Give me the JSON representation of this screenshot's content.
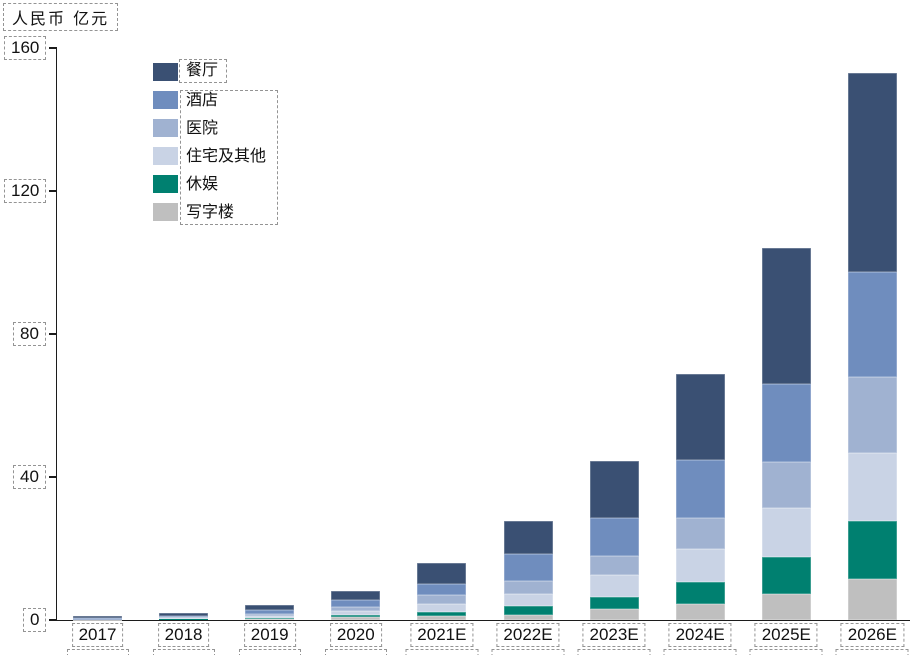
{
  "page": {
    "background": "#ffffff"
  },
  "y_axis": {
    "title": "人民币 亿元",
    "ticks": [
      0,
      40,
      80,
      120,
      160
    ],
    "max": 160
  },
  "x_axis": {
    "categories": [
      "2017",
      "2018",
      "2019",
      "2020",
      "2021E",
      "2022E",
      "2023E",
      "2024E",
      "2025E",
      "2026E"
    ]
  },
  "legend": {
    "items": [
      {
        "label": "餐厅",
        "color": "#3A5073"
      },
      {
        "label": "酒店",
        "color": "#6F8DBE"
      },
      {
        "label": "医院",
        "color": "#A0B2D1"
      },
      {
        "label": "住宅及其他",
        "color": "#C9D3E5"
      },
      {
        "label": "休娱",
        "color": "#008070"
      },
      {
        "label": "写字楼",
        "color": "#BFBFBF"
      }
    ]
  },
  "annotation": {
    "box_border_color": "#949494"
  },
  "chart_data": {
    "type": "bar",
    "stacked": true,
    "title": "",
    "xlabel": "",
    "ylabel": "人民币 亿元",
    "ylim": [
      0,
      160
    ],
    "yticks": [
      0,
      40,
      80,
      120,
      160
    ],
    "grid": false,
    "legend_position": "upper-left-inside",
    "categories": [
      "2017",
      "2018",
      "2019",
      "2020",
      "2021E",
      "2022E",
      "2023E",
      "2024E",
      "2025E",
      "2026E"
    ],
    "series": [
      {
        "name": "餐厅",
        "color": "#3A5073",
        "values": [
          0.4,
          0.8,
          1.6,
          2.5,
          5.8,
          9.3,
          15.8,
          24.0,
          38.0,
          55.6
        ]
      },
      {
        "name": "酒店",
        "color": "#6F8DBE",
        "values": [
          0.2,
          0.5,
          1.0,
          1.8,
          3.3,
          7.4,
          10.6,
          16.2,
          21.7,
          29.4
        ]
      },
      {
        "name": "医院",
        "color": "#A0B2D1",
        "values": [
          0.1,
          0.2,
          0.6,
          1.2,
          2.3,
          3.7,
          5.5,
          8.8,
          12.9,
          21.4
        ]
      },
      {
        "name": "住宅及其他",
        "color": "#C9D3E5",
        "values": [
          0.1,
          0.2,
          0.5,
          1.1,
          2.3,
          3.3,
          6.0,
          9.2,
          13.9,
          18.9
        ]
      },
      {
        "name": "休娱",
        "color": "#008070",
        "values": [
          0.1,
          0.1,
          0.3,
          0.7,
          1.1,
          2.5,
          3.3,
          6.0,
          10.1,
          16.2
        ]
      },
      {
        "name": "写字楼",
        "color": "#BFBFBF",
        "values": [
          0.1,
          0.2,
          0.3,
          0.7,
          1.2,
          1.5,
          3.2,
          4.6,
          7.4,
          11.5
        ]
      }
    ],
    "stack_order_bottom_to_top": [
      "写字楼",
      "休娱",
      "住宅及其他",
      "医院",
      "酒店",
      "餐厅"
    ],
    "totals": [
      1.0,
      2.0,
      4.3,
      8.0,
      16.0,
      27.7,
      44.4,
      68.8,
      104.0,
      153.0
    ]
  }
}
